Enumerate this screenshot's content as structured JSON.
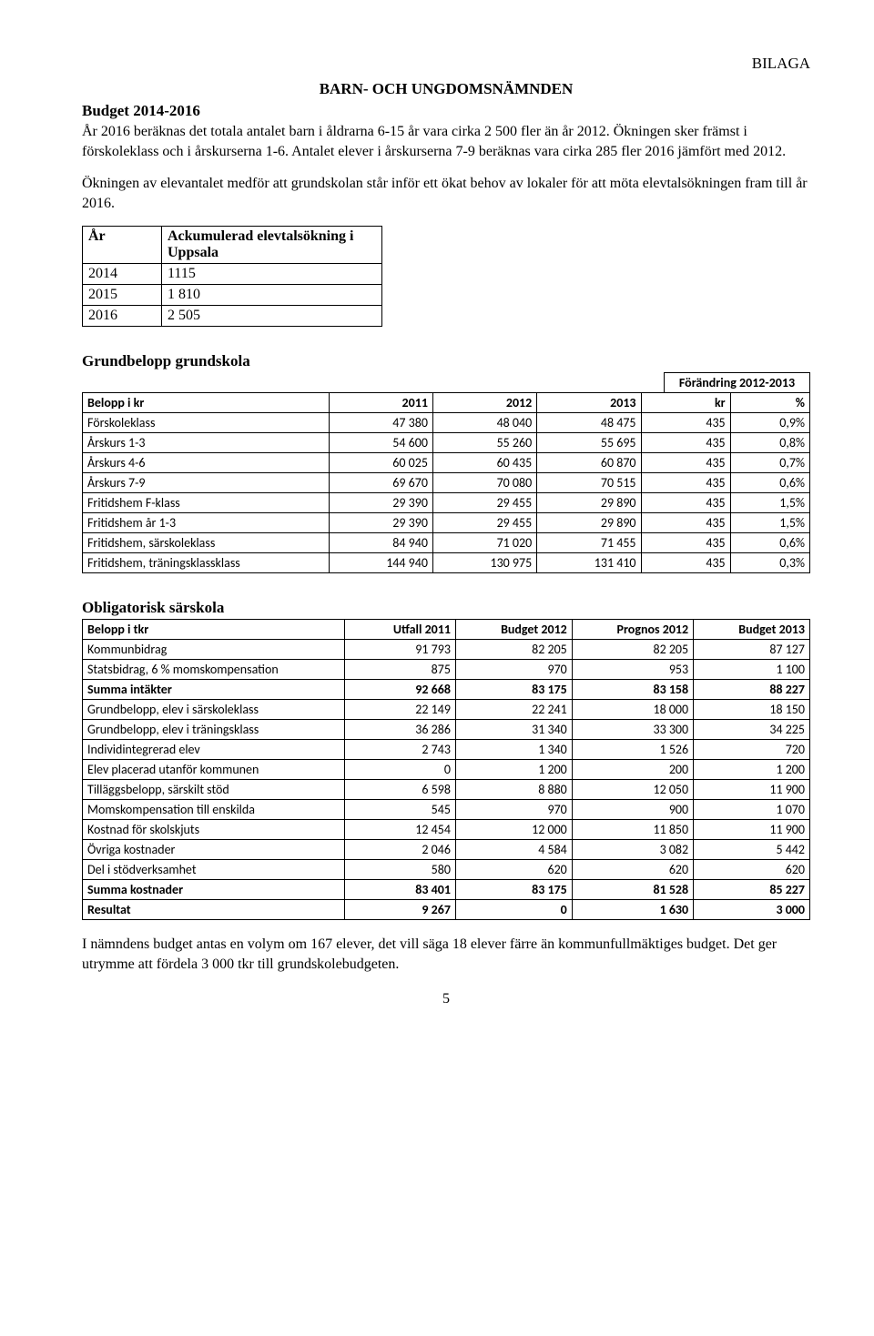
{
  "header": {
    "bilaga": "BILAGA",
    "title": "BARN- OCH UNGDOMSNÄMNDEN",
    "budget_heading": "Budget 2014-2016"
  },
  "paragraphs": {
    "p1": "År 2016 beräknas det totala antalet barn i åldrarna 6-15 år vara cirka 2 500 fler än år 2012. Ökningen sker främst i förskoleklass och i årskurserna 1-6. Antalet elever i årskurserna 7-9 beräknas vara cirka 285 fler 2016 jämfört med 2012.",
    "p2": "Ökningen av elevantalet medför att grundskolan står inför ett ökat behov av lokaler för att möta elevtalsökningen fram till år 2016.",
    "p3": "I nämndens budget antas en volym om 167 elever, det vill säga 18 elever färre än kommunfullmäktiges budget. Det ger utrymme att fördela 3 000 tkr till grundskolebudgeten."
  },
  "year_table": {
    "head_year": "År",
    "head_val": "Ackumulerad elevtalsökning i Uppsala",
    "rows": [
      {
        "year": "2014",
        "val": "1115"
      },
      {
        "year": "2015",
        "val": "1 810"
      },
      {
        "year": "2016",
        "val": "2 505"
      }
    ]
  },
  "grundbelopp": {
    "heading": "Grundbelopp grundskola",
    "change_caption": "Förändring 2012-2013",
    "columns": [
      "Belopp i kr",
      "2011",
      "2012",
      "2013",
      "kr",
      "%"
    ],
    "rows": [
      [
        "Förskoleklass",
        "47 380",
        "48 040",
        "48 475",
        "435",
        "0,9%"
      ],
      [
        "Årskurs 1-3",
        "54 600",
        "55 260",
        "55 695",
        "435",
        "0,8%"
      ],
      [
        "Årskurs 4-6",
        "60 025",
        "60 435",
        "60 870",
        "435",
        "0,7%"
      ],
      [
        "Årskurs 7-9",
        "69 670",
        "70 080",
        "70 515",
        "435",
        "0,6%"
      ],
      [
        "Fritidshem F-klass",
        "29 390",
        "29 455",
        "29 890",
        "435",
        "1,5%"
      ],
      [
        "Fritidshem år 1-3",
        "29 390",
        "29 455",
        "29 890",
        "435",
        "1,5%"
      ],
      [
        "Fritidshem, särskoleklass",
        "84 940",
        "71 020",
        "71 455",
        "435",
        "0,6%"
      ],
      [
        "Fritidshem, träningsklassklass",
        "144 940",
        "130 975",
        "131 410",
        "435",
        "0,3%"
      ]
    ],
    "col_widths": [
      "240px",
      "95px",
      "95px",
      "95px",
      "80px",
      "70px"
    ]
  },
  "sarskola": {
    "heading": "Obligatorisk särskola",
    "columns": [
      "Belopp i tkr",
      "Utfall 2011",
      "Budget 2012",
      "Prognos 2012",
      "Budget 2013"
    ],
    "rows": [
      {
        "cells": [
          "Kommunbidrag",
          "91 793",
          "82 205",
          "82 205",
          "87 127"
        ],
        "bold": false
      },
      {
        "cells": [
          "Statsbidrag, 6 % momskompensation",
          "875",
          "970",
          "953",
          "1 100"
        ],
        "bold": false
      },
      {
        "cells": [
          "Summa intäkter",
          "92 668",
          "83 175",
          "83 158",
          "88 227"
        ],
        "bold": true
      },
      {
        "cells": [
          "Grundbelopp, elev i särskoleklass",
          "22 149",
          "22 241",
          "18 000",
          "18 150"
        ],
        "bold": false
      },
      {
        "cells": [
          "Grundbelopp, elev i träningsklass",
          "36 286",
          "31 340",
          "33 300",
          "34 225"
        ],
        "bold": false
      },
      {
        "cells": [
          "Individintegrerad elev",
          "2 743",
          "1 340",
          "1 526",
          "720"
        ],
        "bold": false
      },
      {
        "cells": [
          "Elev placerad utanför kommunen",
          "0",
          "1 200",
          "200",
          "1 200"
        ],
        "bold": false
      },
      {
        "cells": [
          "Tilläggsbelopp, särskilt stöd",
          "6 598",
          "8 880",
          "12 050",
          "11 900"
        ],
        "bold": false
      },
      {
        "cells": [
          "Momskompensation till enskilda",
          "545",
          "970",
          "900",
          "1 070"
        ],
        "bold": false
      },
      {
        "cells": [
          "Kostnad för skolskjuts",
          "12 454",
          "12 000",
          "11 850",
          "11 900"
        ],
        "bold": false
      },
      {
        "cells": [
          "Övriga kostnader",
          "2 046",
          "4 584",
          "3 082",
          "5 442"
        ],
        "bold": false
      },
      {
        "cells": [
          "Del i stödverksamhet",
          "580",
          "620",
          "620",
          "620"
        ],
        "bold": false
      },
      {
        "cells": [
          "Summa kostnader",
          "83 401",
          "83 175",
          "81 528",
          "85 227"
        ],
        "bold": true
      },
      {
        "cells": [
          "Resultat",
          "9 267",
          "0",
          "1 630",
          "3 000"
        ],
        "bold": true
      }
    ],
    "col_widths": [
      "250px",
      "100px",
      "105px",
      "110px",
      "105px"
    ]
  },
  "page_number": "5"
}
